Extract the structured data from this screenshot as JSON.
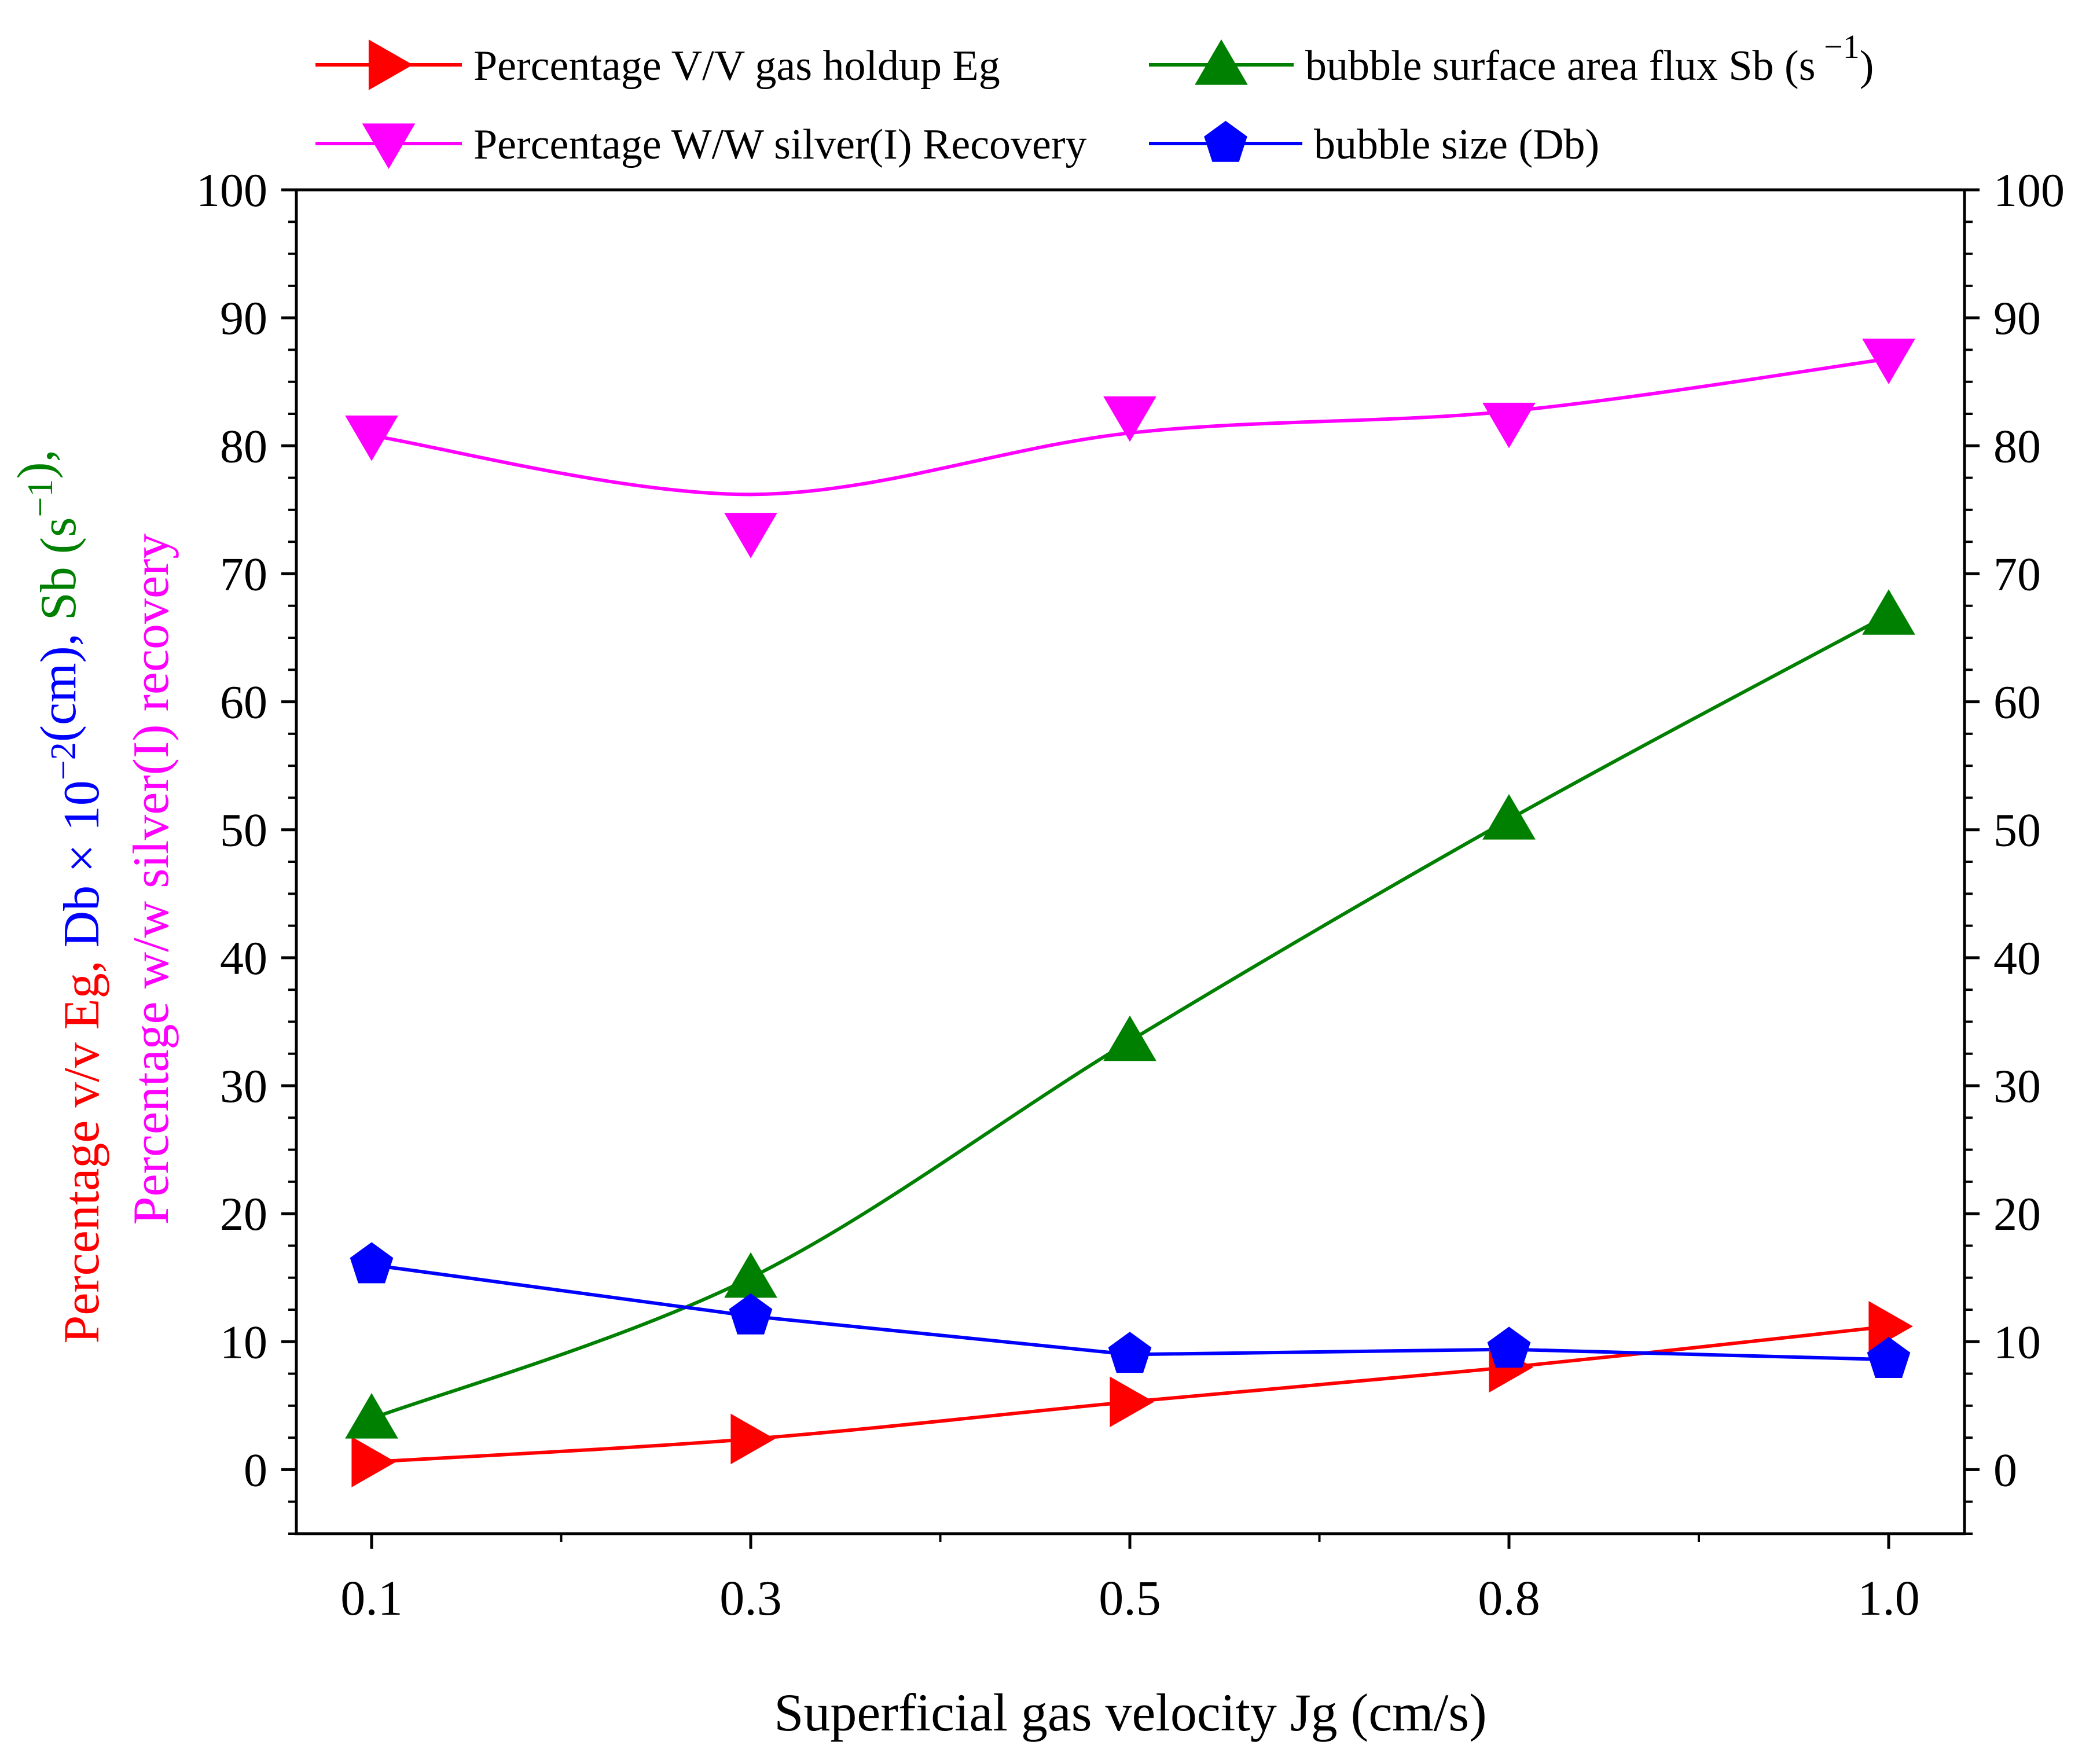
{
  "chart_data": {
    "type": "line",
    "title": "",
    "xlabel": "Superficial gas velocity Jg (cm/s)",
    "ylabel_parts": [
      {
        "text": "Percentage  v/v Eg, ",
        "color": "#ff0000",
        "line": 1
      },
      {
        "text": "Db × 10",
        "color": "#0000ff",
        "line": 1
      },
      {
        "text": "−2",
        "color": "#0000ff",
        "line": 1,
        "sup": true
      },
      {
        "text": "(cm), ",
        "color": "#0000ff",
        "line": 1
      },
      {
        "text": "Sb (s",
        "color": "#008000",
        "line": 1
      },
      {
        "text": "−1",
        "color": "#008000",
        "line": 1,
        "sup": true
      },
      {
        "text": "),",
        "color": "#008000",
        "line": 1
      },
      {
        "text": "Percentage w/w silver(I) recovery",
        "color": "#ff00ff",
        "line": 2
      }
    ],
    "categories": [
      "0.1",
      "0.3",
      "0.5",
      "0.8",
      "1.0"
    ],
    "ylim": [
      -5,
      100
    ],
    "y_ticks": [
      0,
      10,
      20,
      30,
      40,
      50,
      60,
      70,
      80,
      90,
      100
    ],
    "right_axis_ticks": [
      0,
      10,
      20,
      30,
      40,
      50,
      60,
      70,
      80,
      90,
      100
    ],
    "legend_position": "top",
    "series": [
      {
        "name": "Percentage V/V gas holdup Eg",
        "color": "#ff0000",
        "marker": "triangle-right",
        "values": [
          0.6,
          2.4,
          5.3,
          8.0,
          11.2
        ],
        "curve": "smooth"
      },
      {
        "name": "bubble surface area flux Sb (s",
        "name_sup": "−1",
        "name_suffix": ")",
        "color": "#008000",
        "marker": "triangle-up",
        "values": [
          4.0,
          15.0,
          33.5,
          50.8,
          66.8
        ],
        "curve": "smooth"
      },
      {
        "name": "Percentage W/W silver(I) Recovery",
        "color": "#ff00ff",
        "marker": "triangle-down",
        "values": [
          80.8,
          73.2,
          82.3,
          81.8,
          86.8
        ],
        "curve": "fit",
        "fit_values": [
          80.8,
          76.2,
          81.0,
          82.7,
          86.8
        ]
      },
      {
        "name": "bubble size (Db)",
        "color": "#0000ff",
        "marker": "pentagon",
        "values": [
          16.0,
          12.0,
          9.0,
          9.4,
          8.6
        ],
        "curve": "linear"
      }
    ]
  }
}
